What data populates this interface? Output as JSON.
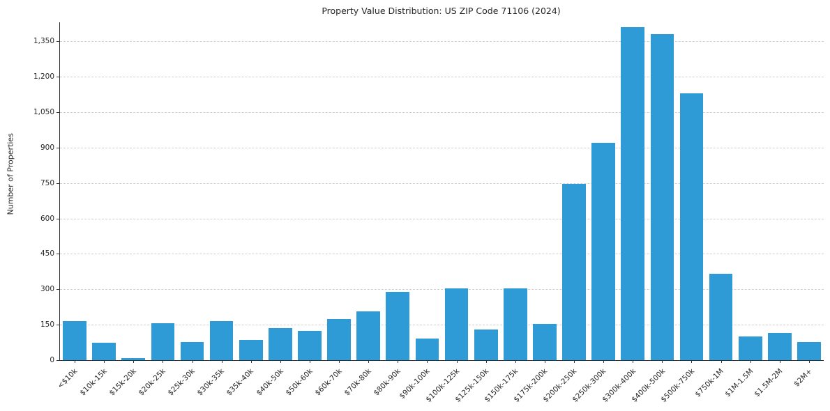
{
  "chart_data": {
    "type": "bar",
    "title": "Property Value Distribution: US ZIP Code 71106 (2024)",
    "xlabel": "",
    "ylabel": "Number of Properties",
    "categories": [
      "<$10k",
      "$10k-15k",
      "$15k-20k",
      "$20k-25k",
      "$25k-30k",
      "$30k-35k",
      "$35k-40k",
      "$40k-50k",
      "$50k-60k",
      "$60k-70k",
      "$70k-80k",
      "$80k-90k",
      "$90k-100k",
      "$100k-125k",
      "$125k-150k",
      "$150k-175k",
      "$175k-200k",
      "$200k-250k",
      "$250k-300k",
      "$300k-400k",
      "$400k-500k",
      "$500k-750k",
      "$750k-1M",
      "$1M-1.5M",
      "$1.5M-2M",
      "$2M+"
    ],
    "values": [
      165,
      75,
      10,
      155,
      78,
      165,
      85,
      135,
      125,
      175,
      205,
      290,
      90,
      305,
      130,
      305,
      152,
      745,
      920,
      1410,
      1380,
      1130,
      365,
      100,
      115,
      78
    ],
    "ylim": [
      0,
      1430
    ],
    "yticks": [
      0,
      150,
      300,
      450,
      600,
      750,
      900,
      1050,
      1200,
      1350
    ],
    "bar_color": "#2e9ad6",
    "grid": true,
    "grid_color": "#cfcfcf",
    "axis_color": "#333333",
    "legend": false
  }
}
